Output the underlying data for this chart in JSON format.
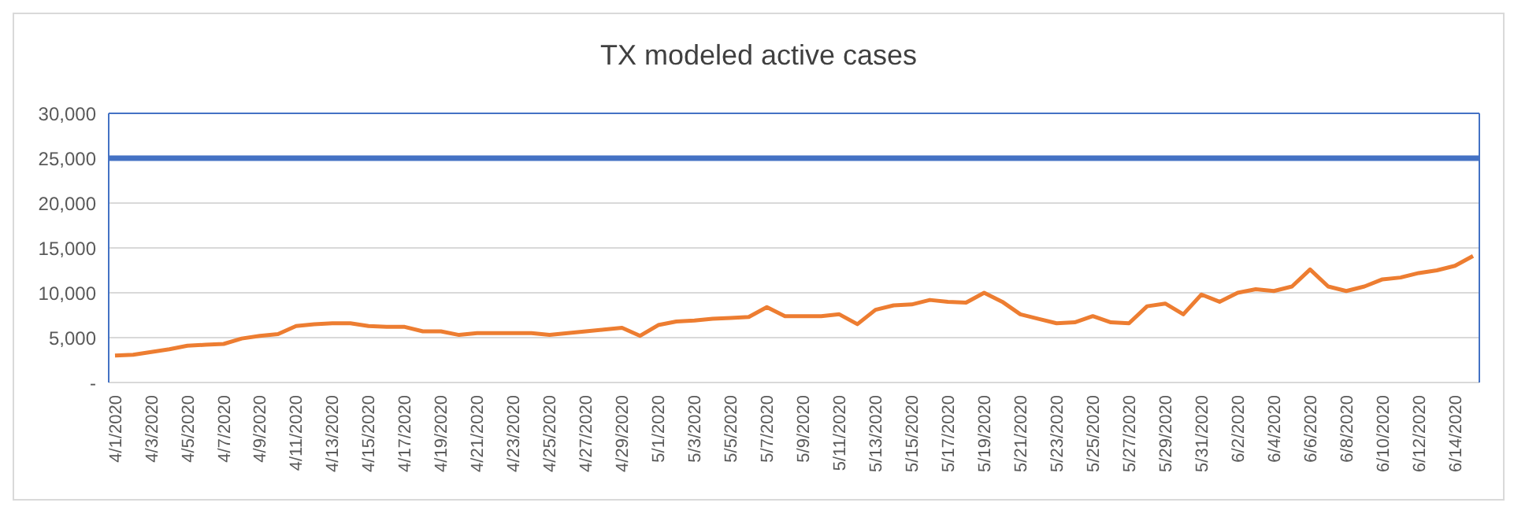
{
  "chart_data": {
    "type": "line",
    "title": "TX modeled active cases",
    "categories": [
      "4/1/2020",
      null,
      "4/3/2020",
      null,
      "4/5/2020",
      null,
      "4/7/2020",
      null,
      "4/9/2020",
      null,
      "4/11/2020",
      null,
      "4/13/2020",
      null,
      "4/15/2020",
      null,
      "4/17/2020",
      null,
      "4/19/2020",
      null,
      "4/21/2020",
      null,
      "4/23/2020",
      null,
      "4/25/2020",
      null,
      "4/27/2020",
      null,
      "4/29/2020",
      null,
      "5/1/2020",
      null,
      "5/3/2020",
      null,
      "5/5/2020",
      null,
      "5/7/2020",
      null,
      "5/9/2020",
      null,
      "5/11/2020",
      null,
      "5/13/2020",
      null,
      "5/15/2020",
      null,
      "5/17/2020",
      null,
      "5/19/2020",
      null,
      "5/21/2020",
      null,
      "5/23/2020",
      null,
      "5/25/2020",
      null,
      "5/27/2020",
      null,
      "5/29/2020",
      null,
      "5/31/2020",
      null,
      "6/2/2020",
      null,
      "6/4/2020",
      null,
      "6/6/2020",
      null,
      "6/8/2020",
      null,
      "6/10/2020",
      null,
      "6/12/2020",
      null,
      "6/14/2020",
      null
    ],
    "series": [
      {
        "color": "#ed7d31",
        "values": [
          3000,
          3100,
          3400,
          3700,
          4100,
          4200,
          4300,
          4900,
          5200,
          5400,
          6300,
          6500,
          6600,
          6600,
          6300,
          6200,
          6200,
          5700,
          5700,
          5300,
          5500,
          5500,
          5500,
          5500,
          5300,
          5500,
          5700,
          5900,
          6100,
          5200,
          6400,
          6800,
          6900,
          7100,
          7200,
          7300,
          8400,
          7400,
          7400,
          7400,
          7600,
          6500,
          8100,
          8600,
          8700,
          9200,
          9000,
          8900,
          10000,
          9000,
          7600,
          7100,
          6600,
          6700,
          7400,
          6700,
          6600,
          8500,
          8800,
          7600,
          9800,
          9000,
          10000,
          10400,
          10200,
          10700,
          12600,
          10700,
          10200,
          10700,
          11500,
          11700,
          12200,
          12500,
          13000,
          14100
        ]
      }
    ],
    "ylim": [
      0,
      30000
    ],
    "yticks": [
      {
        "value": 0,
        "label": "-"
      },
      {
        "value": 5000,
        "label": "5,000"
      },
      {
        "value": 10000,
        "label": "10,000"
      },
      {
        "value": 15000,
        "label": "15,000"
      },
      {
        "value": 20000,
        "label": "20,000"
      },
      {
        "value": 25000,
        "label": "25,000"
      },
      {
        "value": 30000,
        "label": "30,000"
      }
    ],
    "grid": "y",
    "ref_lines": [
      {
        "axis": "y",
        "value": 25000,
        "color": "#4472c4"
      }
    ]
  }
}
